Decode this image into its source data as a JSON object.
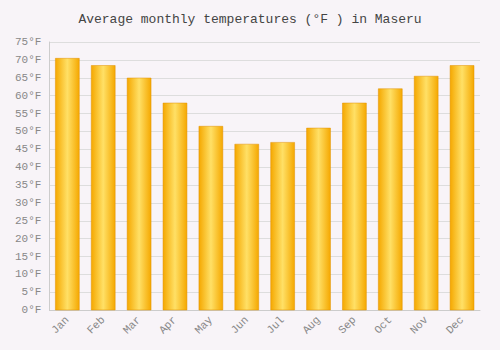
{
  "chart_data": {
    "type": "bar",
    "title": "Average monthly temperatures (°F ) in Maseru",
    "categories": [
      "Jan",
      "Feb",
      "Mar",
      "Apr",
      "May",
      "Jun",
      "Jul",
      "Aug",
      "Sep",
      "Oct",
      "Nov",
      "Dec"
    ],
    "values": [
      70.5,
      68.5,
      65.0,
      58.0,
      51.5,
      46.5,
      47.0,
      51.0,
      58.0,
      62.0,
      65.5,
      68.5
    ],
    "color": "#F5A800",
    "ylim": [
      0,
      75
    ],
    "yticks": [
      {
        "value": 0,
        "label": "0°F"
      },
      {
        "value": 5,
        "label": "5°F"
      },
      {
        "value": 10,
        "label": "10°F"
      },
      {
        "value": 15,
        "label": "15°F"
      },
      {
        "value": 20,
        "label": "20°F"
      },
      {
        "value": 25,
        "label": "25°F"
      },
      {
        "value": 30,
        "label": "30°F"
      },
      {
        "value": 35,
        "label": "35°F"
      },
      {
        "value": 40,
        "label": "40°F"
      },
      {
        "value": 45,
        "label": "45°F"
      },
      {
        "value": 50,
        "label": "50°F"
      },
      {
        "value": 55,
        "label": "55°F"
      },
      {
        "value": 60,
        "label": "60°F"
      },
      {
        "value": 65,
        "label": "65°F"
      },
      {
        "value": 70,
        "label": "70°F"
      },
      {
        "value": 75,
        "label": "75°F"
      }
    ],
    "grid": true
  }
}
